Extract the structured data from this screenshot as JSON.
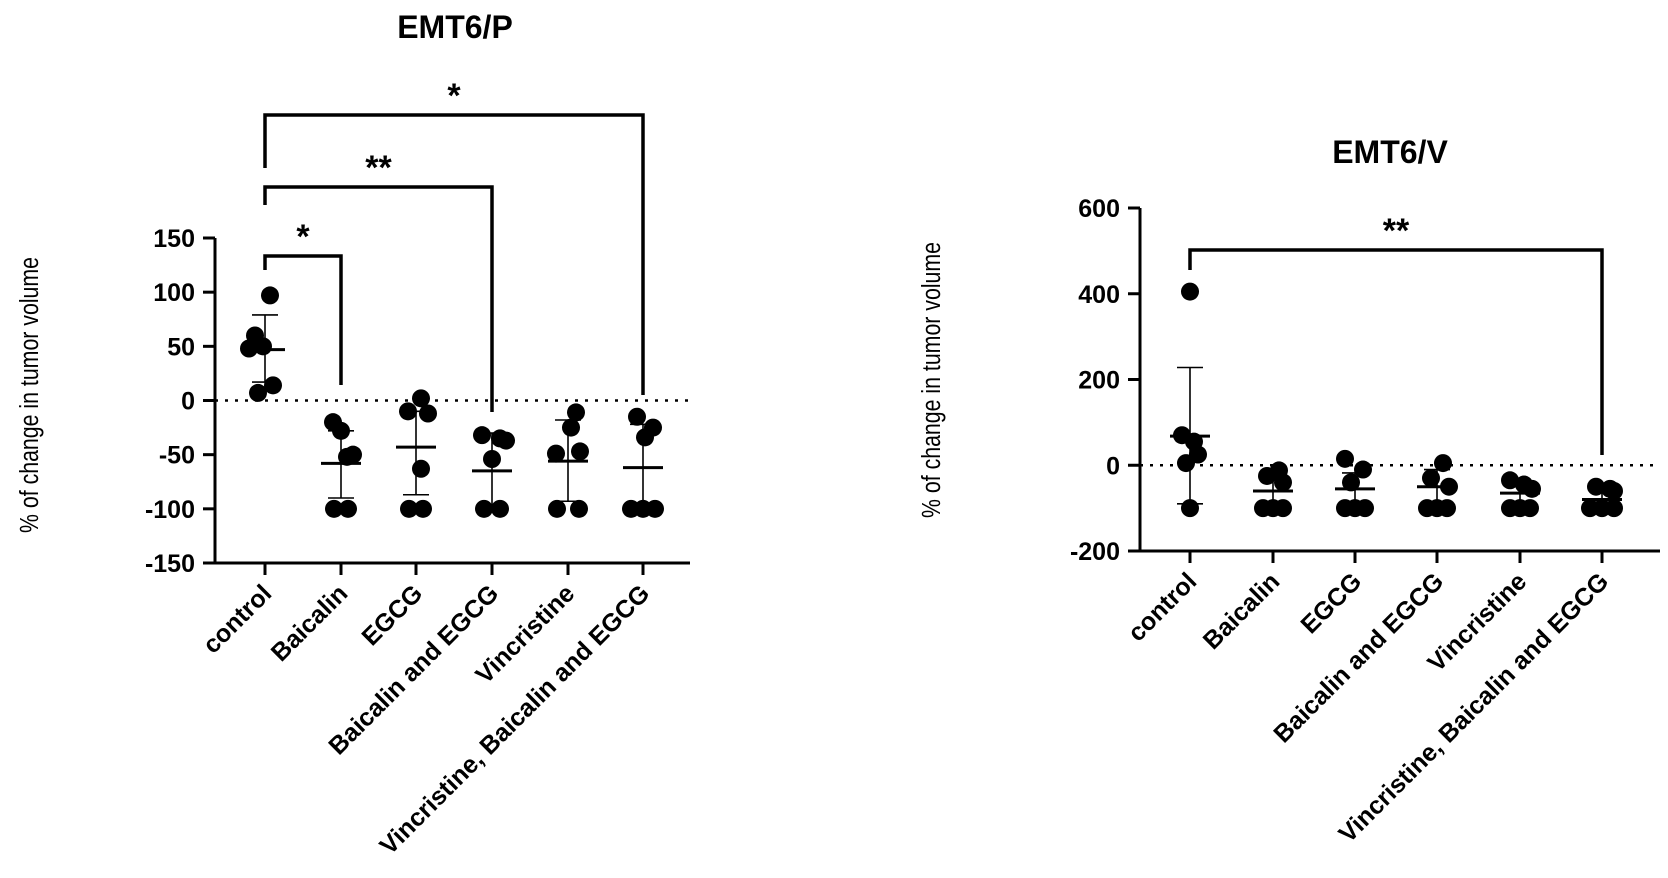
{
  "chart_data": [
    {
      "type": "scatter",
      "title": "EMT6/P",
      "ylabel": "% of change in tumor volume",
      "xlabel": "",
      "ylim": [
        -150,
        150
      ],
      "yticks": [
        "150",
        "100",
        "50",
        "0",
        "-50",
        "-100",
        "-150"
      ],
      "reference_line": 0,
      "grid": false,
      "categories": [
        "control",
        "Baicalin",
        "EGCG",
        "Baicalin and EGCG",
        "Vincristine",
        "Vincristine, Baicalin and EGCG"
      ],
      "points": [
        [
          97,
          60,
          50,
          48,
          14,
          7
        ],
        [
          -20,
          -28,
          -50,
          -52,
          -100,
          -100
        ],
        [
          2,
          -10,
          -12,
          -63,
          -100,
          -100
        ],
        [
          -32,
          -35,
          -37,
          -54,
          -100,
          -100
        ],
        [
          -11,
          -25,
          -47,
          -49,
          -100,
          -100
        ],
        [
          -15,
          -25,
          -34,
          -100,
          -100,
          -100
        ]
      ],
      "mean": [
        47,
        -58,
        -43,
        -65,
        -56,
        -62
      ],
      "sd_upper": [
        79,
        -28,
        -10,
        -30,
        -18,
        -22
      ],
      "sd_lower": [
        17,
        -90,
        -87,
        -100,
        -93,
        -100
      ],
      "significance": [
        {
          "from": "control",
          "to": "Baicalin",
          "label": "*"
        },
        {
          "from": "control",
          "to": "Baicalin and EGCG",
          "label": "**"
        },
        {
          "from": "control",
          "to": "Vincristine, Baicalin and EGCG",
          "label": "*"
        }
      ]
    },
    {
      "type": "scatter",
      "title": "EMT6/V",
      "ylabel": "% of change in tumor volume",
      "xlabel": "",
      "ylim": [
        -200,
        600
      ],
      "yticks": [
        "600",
        "400",
        "200",
        "0",
        "-200"
      ],
      "reference_line": 0,
      "grid": false,
      "categories": [
        "control",
        "Baicalin",
        "EGCG",
        "Baicalin and EGCG",
        "Vincristine",
        "Vincristine, Baicalin and EGCG"
      ],
      "points": [
        [
          405,
          70,
          55,
          25,
          5,
          -100
        ],
        [
          -12,
          -25,
          -40,
          -100,
          -100,
          -100
        ],
        [
          15,
          -10,
          -40,
          -100,
          -100,
          -100
        ],
        [
          5,
          -30,
          -50,
          -100,
          -100,
          -100
        ],
        [
          -35,
          -45,
          -55,
          -100,
          -100,
          -100
        ],
        [
          -50,
          -55,
          -60,
          -100,
          -100,
          -100
        ]
      ],
      "mean": [
        68,
        -60,
        -55,
        -50,
        -65,
        -80
      ],
      "sd_upper": [
        228,
        -20,
        -18,
        -10,
        -40,
        -58
      ],
      "sd_lower": [
        -90,
        -100,
        -100,
        -100,
        -100,
        -100
      ],
      "significance": [
        {
          "from": "control",
          "to": "Vincristine, Baicalin and EGCG",
          "label": "**"
        }
      ]
    }
  ]
}
